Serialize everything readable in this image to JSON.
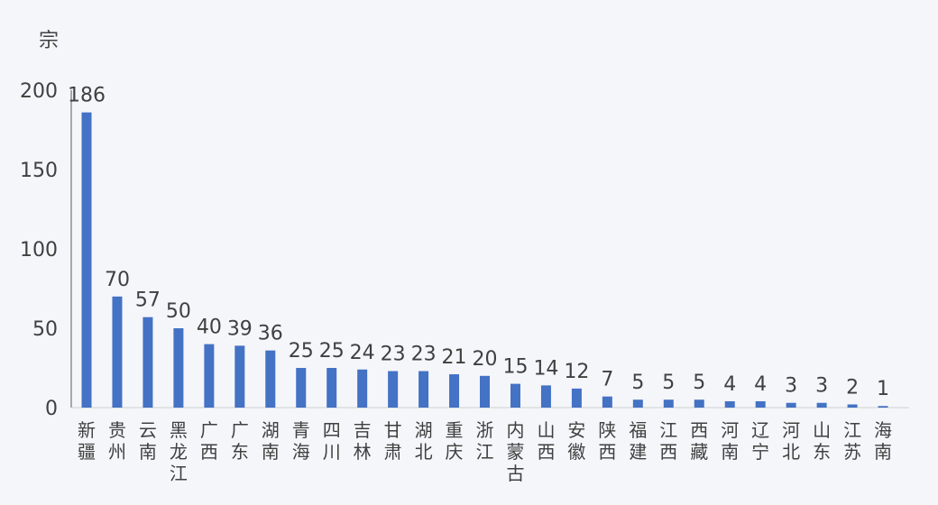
{
  "chart_data": {
    "type": "bar",
    "title": "",
    "ylabel": "宗",
    "xlabel": "",
    "ylim": [
      0,
      200
    ],
    "yticks": [
      0,
      50,
      100,
      150,
      200
    ],
    "grid": false,
    "bar_color": "#4472c4",
    "background": "#f5f6fa",
    "categories": [
      "新疆",
      "贵州",
      "云南",
      "黑龙江",
      "广西",
      "广东",
      "湖南",
      "青海",
      "四川",
      "吉林",
      "甘肃",
      "湖北",
      "重庆",
      "浙江",
      "内蒙古",
      "山西",
      "安徽",
      "陕西",
      "福建",
      "江西",
      "西藏",
      "河南",
      "辽宁",
      "河北",
      "山东",
      "江苏",
      "海南"
    ],
    "values": [
      186,
      70,
      57,
      50,
      40,
      39,
      36,
      25,
      25,
      24,
      23,
      23,
      21,
      20,
      15,
      14,
      12,
      7,
      5,
      5,
      5,
      4,
      4,
      3,
      3,
      2,
      1
    ]
  }
}
